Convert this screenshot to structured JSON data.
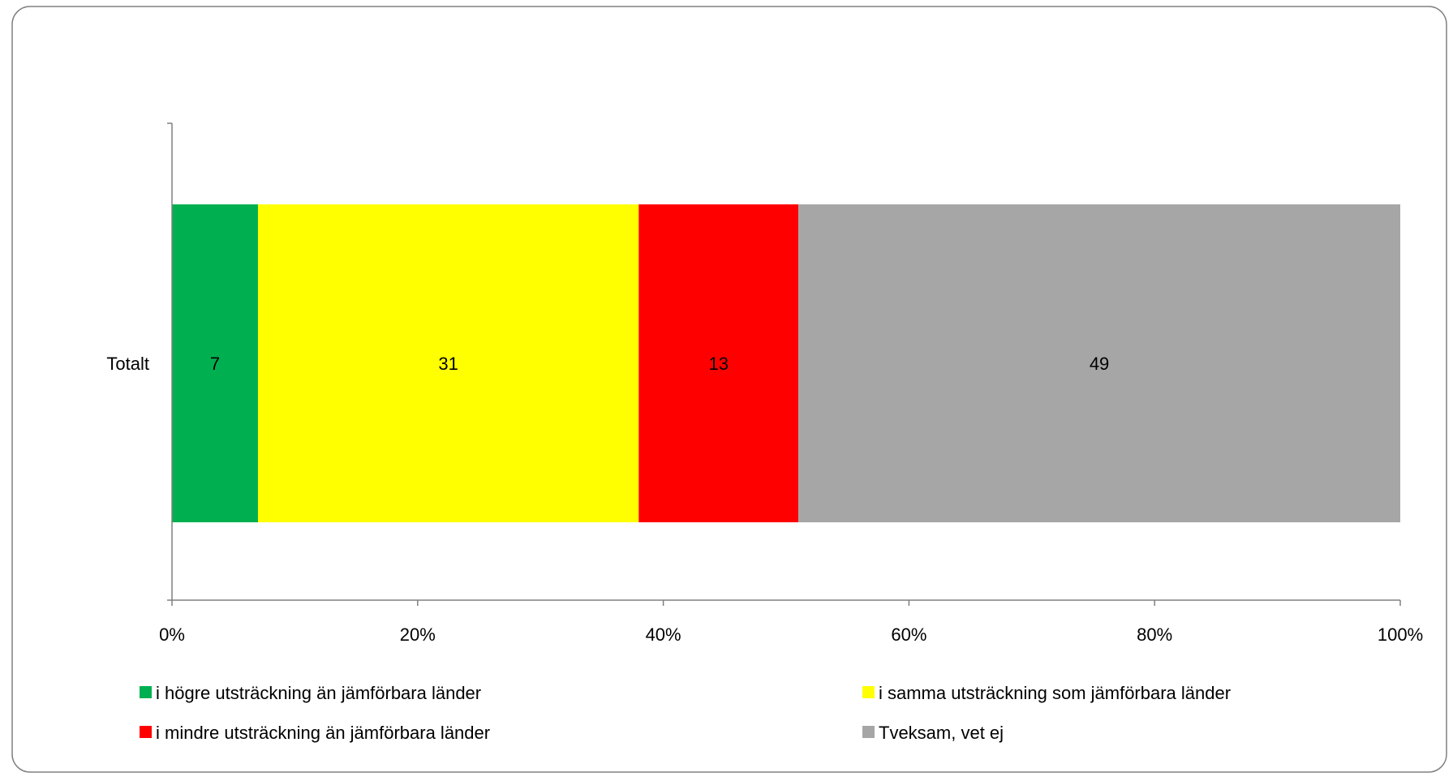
{
  "chart_data": {
    "type": "bar",
    "orientation": "horizontal",
    "stacked": true,
    "percent_stacked": true,
    "categories": [
      "Totalt"
    ],
    "series": [
      {
        "name": "i högre utsträckning än jämförbara länder",
        "values": [
          7
        ],
        "color": "#00B050"
      },
      {
        "name": "i samma utsträckning som jämförbara länder",
        "values": [
          31
        ],
        "color": "#FFFF00"
      },
      {
        "name": "i mindre utsträckning än jämförbara länder",
        "values": [
          13
        ],
        "color": "#FF0000"
      },
      {
        "name": "Tveksam, vet ej",
        "values": [
          49
        ],
        "color": "#A6A6A6"
      }
    ],
    "data_labels": [
      "7",
      "31",
      "13",
      "49"
    ],
    "xlim": [
      0,
      100
    ],
    "x_ticks": [
      0,
      20,
      40,
      60,
      80,
      100
    ],
    "x_tick_labels": [
      "0%",
      "20%",
      "40%",
      "60%",
      "80%",
      "100%"
    ],
    "grid": false,
    "legend_position": "bottom"
  }
}
